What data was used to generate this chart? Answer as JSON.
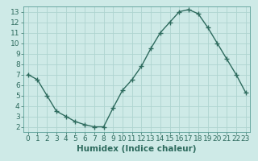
{
  "x": [
    0,
    1,
    2,
    3,
    4,
    5,
    6,
    7,
    8,
    9,
    10,
    11,
    12,
    13,
    14,
    15,
    16,
    17,
    18,
    19,
    20,
    21,
    22,
    23
  ],
  "y": [
    7.0,
    6.5,
    5.0,
    3.5,
    3.0,
    2.5,
    2.2,
    2.0,
    2.0,
    3.8,
    5.5,
    6.5,
    7.8,
    9.5,
    11.0,
    12.0,
    13.0,
    13.2,
    12.8,
    11.5,
    10.0,
    8.5,
    7.0,
    5.3
  ],
  "line_color": "#2e6b5e",
  "marker": "+",
  "marker_size": 4,
  "background_color": "#ceeae7",
  "grid_color": "#aed4d0",
  "xlabel": "Humidex (Indice chaleur)",
  "xlim": [
    -0.5,
    23.5
  ],
  "ylim": [
    1.5,
    13.5
  ],
  "yticks": [
    2,
    3,
    4,
    5,
    6,
    7,
    8,
    9,
    10,
    11,
    12,
    13
  ],
  "xticks": [
    0,
    1,
    2,
    3,
    4,
    5,
    6,
    7,
    8,
    9,
    10,
    11,
    12,
    13,
    14,
    15,
    16,
    17,
    18,
    19,
    20,
    21,
    22,
    23
  ],
  "tick_color": "#2e6b5e",
  "tick_label_fontsize": 6.5,
  "xlabel_fontsize": 7.5,
  "linewidth": 1.0,
  "spine_color": "#5a9e96"
}
